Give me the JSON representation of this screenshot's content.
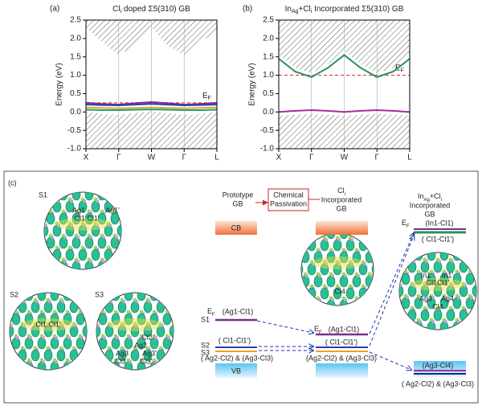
{
  "chart_data": [
    {
      "type": "line",
      "panel": "(a)",
      "title": [
        "Cl",
        "i",
        " doped Σ5(310) GB"
      ],
      "ylabel": "Energy (eV)",
      "x": [
        0,
        0.5,
        1,
        1.5,
        2,
        2.5,
        3,
        3.5,
        4
      ],
      "xlim": [
        0,
        4
      ],
      "xticks": [
        {
          "value": 0,
          "label": "X"
        },
        {
          "value": 1,
          "label": "Γ"
        },
        {
          "value": 2,
          "label": "W"
        },
        {
          "value": 3,
          "label": "Γ"
        },
        {
          "value": 4,
          "label": "L"
        }
      ],
      "ylim": [
        -1,
        2.5
      ],
      "yticks": [
        {
          "value": -1,
          "label": "-1.0"
        },
        {
          "value": -0.5,
          "label": "-0.5"
        },
        {
          "value": 0,
          "label": "0.0"
        },
        {
          "value": 0.5,
          "label": "0.5"
        },
        {
          "value": 1,
          "label": "1.0"
        },
        {
          "value": 1.5,
          "label": "1.5"
        },
        {
          "value": 2,
          "label": "2.0"
        },
        {
          "value": 2.5,
          "label": "2.5"
        }
      ],
      "fermi_level": 0.25,
      "fermi_label": [
        "E",
        "F"
      ],
      "fermi_color": "#d42020",
      "cb_edge": [
        2.3,
        1.9,
        1.55,
        1.8,
        2.3,
        1.8,
        1.55,
        1.9,
        2.2
      ],
      "vb_edge": [
        0.0,
        -0.05,
        -0.08,
        -0.03,
        0.02,
        -0.03,
        -0.08,
        -0.05,
        0.0
      ],
      "series": [
        {
          "color": "#7b2d8e",
          "values": [
            0.25,
            0.22,
            0.2,
            0.24,
            0.27,
            0.24,
            0.2,
            0.22,
            0.25
          ]
        },
        {
          "color": "#2040c0",
          "values": [
            0.2,
            0.19,
            0.18,
            0.2,
            0.22,
            0.2,
            0.18,
            0.19,
            0.2
          ]
        },
        {
          "color": "#f0a020",
          "values": [
            0.12,
            0.11,
            0.1,
            0.11,
            0.12,
            0.11,
            0.1,
            0.11,
            0.12
          ]
        },
        {
          "color": "#20a070",
          "values": [
            0.06,
            0.05,
            0.05,
            0.06,
            0.07,
            0.06,
            0.05,
            0.05,
            0.06
          ]
        }
      ]
    },
    {
      "type": "line",
      "panel": "(b)",
      "title": [
        "In",
        "Ag",
        "+Cl",
        "i",
        " Incorporated Σ5(310) GB"
      ],
      "ylabel": "Energy (eV)",
      "x": [
        0,
        0.5,
        1,
        1.5,
        2,
        2.5,
        3,
        3.5,
        4
      ],
      "xlim": [
        0,
        4
      ],
      "xticks": [
        {
          "value": 0,
          "label": "X"
        },
        {
          "value": 1,
          "label": "Γ"
        },
        {
          "value": 2,
          "label": "W"
        },
        {
          "value": 3,
          "label": "Γ"
        },
        {
          "value": 4,
          "label": "L"
        }
      ],
      "ylim": [
        -1,
        2.5
      ],
      "yticks": [
        {
          "value": -1,
          "label": "-1.0"
        },
        {
          "value": -0.5,
          "label": "-0.5"
        },
        {
          "value": 0,
          "label": "0.0"
        },
        {
          "value": 0.5,
          "label": "0.5"
        },
        {
          "value": 1,
          "label": "1.0"
        },
        {
          "value": 1.5,
          "label": "1.5"
        },
        {
          "value": 2,
          "label": "2.0"
        },
        {
          "value": 2.5,
          "label": "2.5"
        }
      ],
      "fermi_level": 1.0,
      "fermi_label": [
        "E",
        "F"
      ],
      "fermi_color": "#d42020",
      "cb_edge": [
        1.55,
        1.2,
        1.05,
        1.3,
        1.65,
        1.3,
        1.05,
        1.2,
        1.55
      ],
      "vb_edge": [
        -0.1,
        -0.07,
        -0.05,
        -0.07,
        -0.1,
        -0.07,
        -0.05,
        -0.07,
        -0.1
      ],
      "series": [
        {
          "color": "#2a9060",
          "values": [
            1.45,
            1.1,
            0.95,
            1.2,
            1.55,
            1.2,
            0.95,
            1.1,
            1.45
          ]
        },
        {
          "color": "#a0309a",
          "values": [
            0.0,
            0.03,
            0.05,
            0.03,
            0.0,
            0.03,
            0.05,
            0.03,
            0.0
          ]
        }
      ]
    }
  ],
  "diagram": {
    "label": "(c)",
    "s1": {
      "name": "S1",
      "atoms": [
        "Ag1",
        "Ag1'",
        "Cl1 Cl1'"
      ]
    },
    "s2": {
      "name": "S2",
      "atoms": [
        "Cl1 Cl1'"
      ]
    },
    "s3": {
      "name": "S3",
      "atoms": [
        "Cl2",
        "Ag2",
        "Ag3",
        "Ag3'",
        "Cl3",
        "Cl3'"
      ]
    },
    "mid_atoms": [
      "Cl4"
    ],
    "right_atoms": [
      "In1",
      "In1'",
      "Cl1Cl1'",
      "Ag3",
      "Ag4",
      "Cl4"
    ],
    "prototype_head": [
      "Prototype",
      "GB"
    ],
    "passivation": [
      "Chemical",
      "Passivation"
    ],
    "cl_head": [
      "Cl",
      "i",
      "Incorporated",
      "GB"
    ],
    "in_head": [
      "In",
      "Ag",
      "+Cl",
      "i",
      "Incorporated",
      "GB"
    ],
    "cb": "CB",
    "vb": "VB",
    "ef": [
      "E",
      "F"
    ],
    "proto_levels": {
      "ef_bond": "(Ag1-Cl1)",
      "s1": "S1",
      "s2": "S2",
      "s2_bond": "( Cl1-Cl1')",
      "s3": "S3",
      "s3_bond": "( Ag2-Cl2) & (Ag3-Cl3)"
    },
    "mid_levels": {
      "ef_bond": "(Ag1-Cl1)",
      "s2_bond": "( Cl1-Cl1')",
      "s3_bond": "(Ag2-Cl2) & (Ag3-Cl3)"
    },
    "right_levels": {
      "ef_bond": "(In1-Cl1)",
      "s2_bond": "( Cl1-Cl1')",
      "s4_bond": "(Ag3-Cl4)",
      "s3_bond": "( Ag2-Cl2) & (Ag3-Cl3)"
    }
  }
}
